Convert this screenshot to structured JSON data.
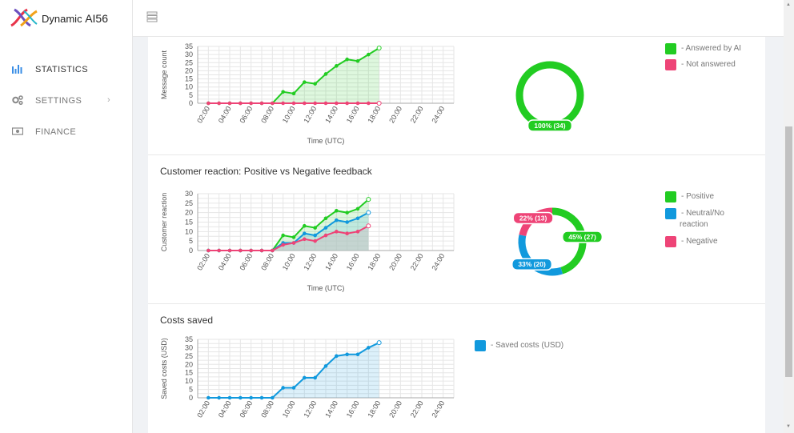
{
  "app": {
    "name_prefix": "Dynamic ",
    "name_suffix": "AI56"
  },
  "sidebar": {
    "items": [
      {
        "label": "STATISTICS",
        "icon": "bar-chart-icon"
      },
      {
        "label": "SETTINGS",
        "icon": "gears-icon",
        "has_submenu": true
      },
      {
        "label": "FINANCE",
        "icon": "money-icon"
      }
    ]
  },
  "colors": {
    "green": "#22cc22",
    "pink": "#ee4477",
    "blue": "#1199dd",
    "gray_fill": "#c8c8c8"
  },
  "charts": {
    "x_ticks": [
      "02:00",
      "04:00",
      "06:00",
      "08:00",
      "10:00",
      "12:00",
      "14:00",
      "16:00",
      "18:00",
      "20:00",
      "22:00",
      "24:00"
    ],
    "x_label": "Time (UTC)",
    "messages": {
      "ylabel": "Message count",
      "yticks": [
        "0",
        "5",
        "10",
        "15",
        "20",
        "25",
        "30",
        "35"
      ],
      "series": [
        {
          "name": "Answered by AI",
          "color": "#22cc22",
          "fill": "rgba(34,204,34,0.15)",
          "values": [
            0,
            0,
            0,
            0,
            0,
            0,
            0,
            7,
            6,
            13,
            12,
            18,
            23,
            27,
            26,
            30,
            34
          ]
        },
        {
          "name": "Not answered",
          "color": "#ee4477",
          "fill": "none",
          "values": [
            0,
            0,
            0,
            0,
            0,
            0,
            0,
            0,
            0,
            0,
            0,
            0,
            0,
            0,
            0,
            0,
            0
          ]
        }
      ],
      "donut": [
        {
          "label": "100% (34)",
          "value": 34,
          "color": "#22cc22"
        }
      ],
      "legend": [
        "- Answered by AI",
        "- Not answered"
      ]
    },
    "reaction": {
      "title": "Customer reaction: Positive vs Negative feedback",
      "ylabel": "Customer reaction",
      "yticks": [
        "0",
        "5",
        "10",
        "15",
        "20",
        "25",
        "30"
      ],
      "series": [
        {
          "name": "Positive",
          "color": "#22cc22",
          "fill": "rgba(34,204,34,0.15)",
          "values": [
            0,
            0,
            0,
            0,
            0,
            0,
            0,
            8,
            7,
            13,
            12,
            17,
            21,
            20,
            22,
            27
          ]
        },
        {
          "name": "Neutral/No reaction",
          "color": "#1199dd",
          "fill": "rgba(17,153,221,0.15)",
          "values": [
            0,
            0,
            0,
            0,
            0,
            0,
            0,
            4,
            4,
            9,
            8,
            12,
            16,
            15,
            17,
            20
          ]
        },
        {
          "name": "Negative",
          "color": "#ee4477",
          "fill": "rgba(200,200,200,0.6)",
          "values": [
            0,
            0,
            0,
            0,
            0,
            0,
            0,
            3,
            4,
            6,
            5,
            8,
            10,
            9,
            10,
            13
          ]
        }
      ],
      "donut": [
        {
          "label": "45% (27)",
          "value": 27,
          "color": "#22cc22"
        },
        {
          "label": "33% (20)",
          "value": 20,
          "color": "#1199dd"
        },
        {
          "label": "22% (13)",
          "value": 13,
          "color": "#ee4477"
        }
      ],
      "legend": [
        "- Positive",
        "- Neutral/No",
        "reaction",
        "- Negative"
      ]
    },
    "costs": {
      "title": "Costs saved",
      "ylabel": "Saved costs (USD)",
      "yticks": [
        "0",
        "5",
        "10",
        "15",
        "20",
        "25",
        "30",
        "35"
      ],
      "series": [
        {
          "name": "Saved costs (USD)",
          "color": "#1199dd",
          "fill": "rgba(17,153,221,0.15)",
          "values": [
            0,
            0,
            0,
            0,
            0,
            0,
            0,
            6,
            6,
            12,
            12,
            19,
            25,
            26,
            26,
            30,
            33
          ]
        }
      ],
      "legend": [
        "- Saved costs (USD)"
      ]
    }
  }
}
